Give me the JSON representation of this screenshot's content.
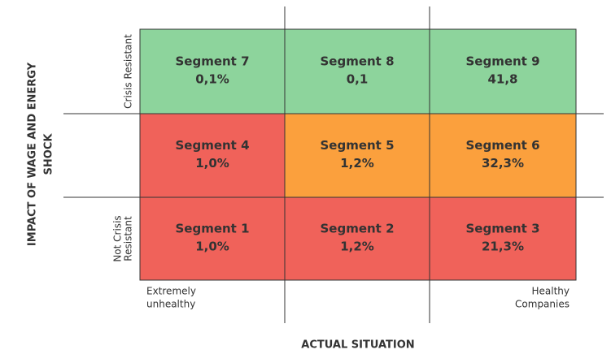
{
  "matrix": {
    "rows": [
      [
        {
          "name": "Segment 7",
          "value": "0,1%",
          "color": "#8dd49c"
        },
        {
          "name": "Segment 8",
          "value": "0,1",
          "color": "#8dd49c"
        },
        {
          "name": "Segment 9",
          "value": "41,8",
          "color": "#8dd49c"
        }
      ],
      [
        {
          "name": "Segment 4",
          "value": "1,0%",
          "color": "#f0625a"
        },
        {
          "name": "Segment 5",
          "value": "1,2%",
          "color": "#fba03d"
        },
        {
          "name": "Segment 6",
          "value": "32,3%",
          "color": "#fba03d"
        }
      ],
      [
        {
          "name": "Segment 1",
          "value": "1,0%",
          "color": "#f0625a"
        },
        {
          "name": "Segment 2",
          "value": "1,2%",
          "color": "#f0625a"
        },
        {
          "name": "Segment 3",
          "value": "21,3%",
          "color": "#f0625a"
        }
      ]
    ],
    "row_labels": [
      [
        "Crisis Resistant"
      ],
      [],
      [
        "Not Crisis",
        "Resistant"
      ]
    ],
    "y_axis_title": [
      "IMPACT OF WAGE AND ENERGY",
      "SHOCK"
    ],
    "x_left_label": [
      "Extremely",
      "unhealthy"
    ],
    "x_right_label": [
      "Healthy",
      "Companies"
    ],
    "x_axis_title": "ACTUAL SITUATION"
  }
}
